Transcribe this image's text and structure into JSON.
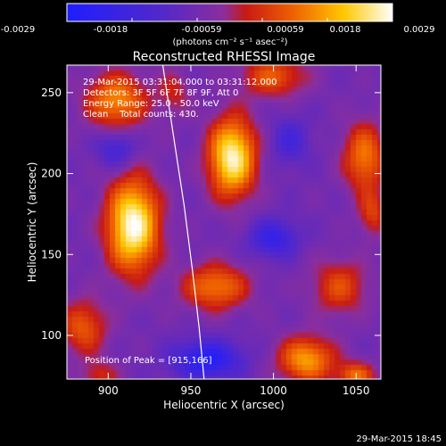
{
  "colorbar": {
    "ticks": [
      "-0.0029",
      "-0.0018",
      "-0.00059",
      "0.00059",
      "0.0018",
      "0.0029"
    ],
    "unit_label": "(photons cm⁻² s⁻¹ asec⁻²)"
  },
  "chart_data": {
    "type": "heatmap",
    "title": "Reconstructed RHESSI Image",
    "xlabel": "Heliocentric X (arcsec)",
    "ylabel": "Heliocentric Y (arcsec)",
    "xlim": [
      875,
      1065
    ],
    "ylim": [
      73,
      267
    ],
    "colorbar_range": [
      -0.0029,
      0.0029
    ],
    "colormap": "blue-purple-red-yellow-white",
    "xticks": [
      900,
      950,
      1000,
      1050
    ],
    "yticks": [
      100,
      150,
      200,
      250
    ],
    "annotations": [
      "29-Mar-2015 03:31:04.000 to 03:31:12.000",
      "Detectors: 3F 5F 6F 7F 8F 9F, Att 0",
      "Energy Range: 25.0 - 50.0 keV",
      "Clean    Total counts: 430."
    ],
    "peak_label": "Position of Peak = [915,166]",
    "peak": [
      915,
      166
    ],
    "limb_curve": [
      [
        933,
        267
      ],
      [
        940,
        220
      ],
      [
        946,
        180
      ],
      [
        951,
        140
      ],
      [
        955,
        105
      ],
      [
        958,
        73
      ]
    ],
    "blobs": [
      {
        "x": 915,
        "y": 168,
        "sx": 11,
        "sy": 20,
        "amp": 1.0
      },
      {
        "x": 975,
        "y": 210,
        "sx": 10,
        "sy": 17,
        "amp": 0.95
      },
      {
        "x": 905,
        "y": 245,
        "sx": 13,
        "sy": 12,
        "amp": 0.6
      },
      {
        "x": 1000,
        "y": 260,
        "sx": 14,
        "sy": 9,
        "amp": 0.45
      },
      {
        "x": 1055,
        "y": 210,
        "sx": 9,
        "sy": 15,
        "amp": 0.55
      },
      {
        "x": 965,
        "y": 130,
        "sx": 14,
        "sy": 10,
        "amp": 0.55
      },
      {
        "x": 1040,
        "y": 130,
        "sx": 12,
        "sy": 12,
        "amp": 0.4
      },
      {
        "x": 1020,
        "y": 85,
        "sx": 12,
        "sy": 10,
        "amp": 0.65
      },
      {
        "x": 1060,
        "y": 175,
        "sx": 6,
        "sy": 10,
        "amp": 0.35
      },
      {
        "x": 885,
        "y": 105,
        "sx": 10,
        "sy": 12,
        "amp": 0.45
      },
      {
        "x": 1050,
        "y": 75,
        "sx": 8,
        "sy": 6,
        "amp": 0.5
      },
      {
        "x": 895,
        "y": 75,
        "sx": 8,
        "sy": 6,
        "amp": 0.3
      },
      {
        "x": 940,
        "y": 250,
        "sx": 7,
        "sy": 10,
        "amp": 0.25
      },
      {
        "x": 1000,
        "y": 160,
        "sx": 10,
        "sy": 8,
        "amp": -0.45
      },
      {
        "x": 960,
        "y": 85,
        "sx": 14,
        "sy": 8,
        "amp": -0.6
      },
      {
        "x": 905,
        "y": 215,
        "sx": 8,
        "sy": 8,
        "amp": -0.35
      },
      {
        "x": 1010,
        "y": 220,
        "sx": 8,
        "sy": 10,
        "amp": -0.3
      }
    ]
  },
  "footer": {
    "timestamp": "29-Mar-2015 18:45"
  }
}
